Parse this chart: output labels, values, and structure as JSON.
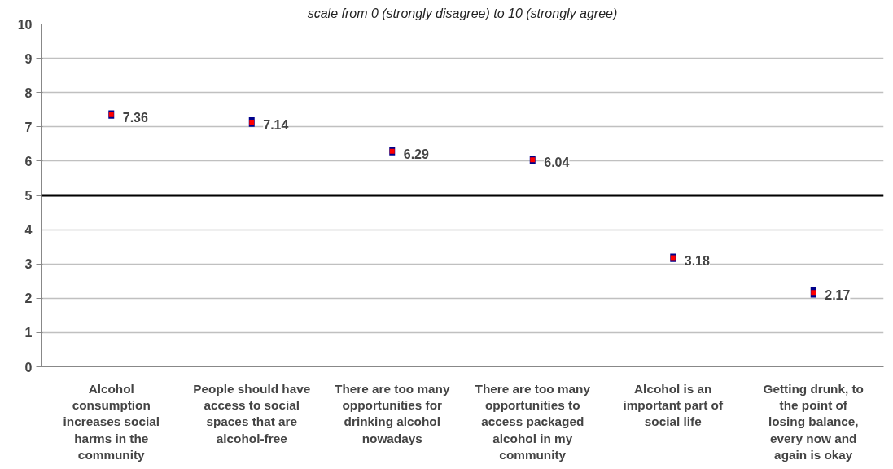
{
  "chart_data": {
    "type": "scatter",
    "subtitle": "scale from 0 (strongly disagree) to 10 (strongly agree)",
    "categories": [
      "Alcohol consumption increases social harms in the community",
      "People should have access to social spaces that are alcohol-free",
      "There are too many opportunities for drinking alcohol nowadays",
      "There are too many opportunities to access packaged alcohol in my community",
      "Alcohol is an important part of social life",
      "Getting drunk, to the point of losing balance, every now and again is okay"
    ],
    "series": [
      {
        "color": "#ff0000",
        "values": [
          7.36,
          7.14,
          6.29,
          6.04,
          3.18,
          2.17
        ],
        "errors": [
          0.12,
          0.14,
          0.12,
          0.12,
          0.12,
          0.15
        ]
      }
    ],
    "data_labels": true,
    "marker": "square",
    "ylim": [
      0,
      10
    ],
    "yticks": [
      0,
      1,
      2,
      3,
      4,
      5,
      6,
      7,
      8,
      9,
      10
    ],
    "grid": "y",
    "ref_lines": [
      {
        "axis": "y",
        "value": 5,
        "color": "#000000"
      }
    ]
  }
}
